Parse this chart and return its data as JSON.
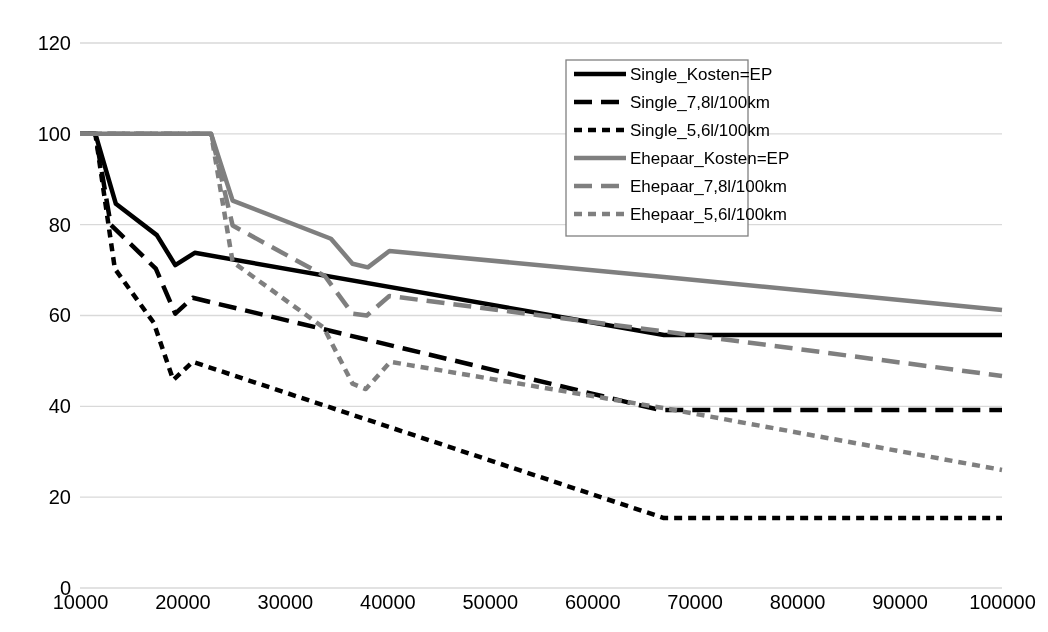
{
  "chart_data": {
    "type": "line",
    "xlim": [
      10000,
      100000
    ],
    "xticks": [
      10000,
      20000,
      30000,
      40000,
      50000,
      60000,
      70000,
      80000,
      90000,
      100000
    ],
    "ylim": [
      0,
      120
    ],
    "yticks": [
      0,
      20,
      40,
      60,
      80,
      100,
      120
    ],
    "grid": "y",
    "legend": "top right",
    "marker": "none",
    "series": [
      {
        "name": "Single_Kosten=EP",
        "color": "#000000",
        "line_style": "solid",
        "x": [
          10000,
          11500,
          13500,
          17500,
          19300,
          21200,
          67000,
          100000
        ],
        "values": [
          100,
          100,
          84.6,
          77.7,
          71.1,
          73.8,
          55.7,
          55.7
        ]
      },
      {
        "name": "Single_7,8l/100km",
        "color": "#000000",
        "line_style": "dashed",
        "x": [
          10000,
          11500,
          13000,
          17400,
          19300,
          21000,
          66600,
          100000
        ],
        "values": [
          100,
          100,
          80,
          70.3,
          60.4,
          63.9,
          39.2,
          39.2
        ]
      },
      {
        "name": "Single_5,6l/100km",
        "color": "#000000",
        "line_style": "dotted",
        "x": [
          10000,
          11500,
          13400,
          17200,
          19100,
          21000,
          67000,
          100000
        ],
        "values": [
          100,
          100,
          70.3,
          58.4,
          45.8,
          49.8,
          15.4,
          15.4
        ]
      },
      {
        "name": "Ehepaar_Kosten=EP",
        "color": "#7f7f7f",
        "line_style": "solid",
        "x": [
          10000,
          22800,
          24900,
          34500,
          36600,
          38100,
          40200,
          67000,
          100000
        ],
        "values": [
          100,
          100,
          85.3,
          76.9,
          71.4,
          70.6,
          74.2,
          68.5,
          61.2
        ]
      },
      {
        "name": "Ehepaar_7,8l/100km",
        "color": "#7f7f7f",
        "line_style": "dashed",
        "x": [
          10000,
          22800,
          24900,
          33900,
          36600,
          38000,
          40200,
          67000,
          100000
        ],
        "values": [
          100,
          100,
          79.8,
          68.7,
          60.4,
          60,
          64.3,
          56.5,
          46.7
        ]
      },
      {
        "name": "Ehepaar_5,6l/100km",
        "color": "#7f7f7f",
        "line_style": "dotted",
        "x": [
          10000,
          22800,
          24900,
          33800,
          36600,
          37900,
          40300,
          67000,
          100000
        ],
        "values": [
          100,
          100,
          71.8,
          57.3,
          45,
          43.8,
          49.8,
          39.6,
          26
        ]
      }
    ]
  }
}
